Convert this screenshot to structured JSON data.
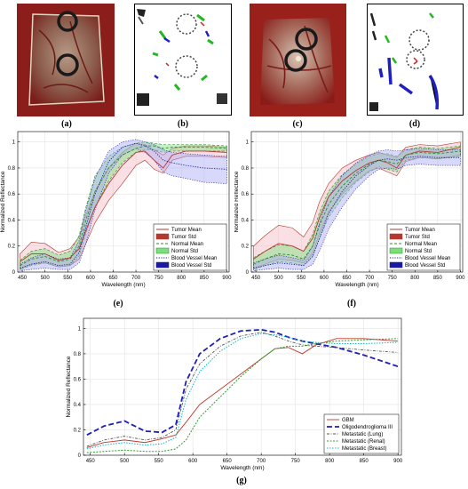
{
  "panels": {
    "a": {
      "label": "(a)"
    },
    "b": {
      "label": "(b)"
    },
    "c": {
      "label": "(c)"
    },
    "d": {
      "label": "(d)"
    },
    "e": {
      "label": "(e)"
    },
    "f": {
      "label": "(f)"
    },
    "g": {
      "label": "(g)"
    }
  },
  "colors": {
    "tumor": "#b03a2e",
    "tumor_fill": "#f5b7c4",
    "normal": "#2e8b2e",
    "normal_fill": "#7be07b",
    "blood": "#1a1aa0",
    "blood_fill": "#a9a9f5",
    "gbm": "#c0392b",
    "oligo": "#1f1fb4",
    "lung": "#555555",
    "renal": "#2ca02c",
    "breast": "#17b6c8"
  },
  "chart_data": [
    {
      "id": "e",
      "type": "line",
      "xlabel": "Wavelength (nm)",
      "ylabel": "Normalized Reflectance",
      "xlim": [
        440,
        905
      ],
      "ylim": [
        0,
        1.08
      ],
      "xticks": [
        450,
        500,
        550,
        600,
        650,
        700,
        750,
        800,
        850,
        900
      ],
      "yticks": [
        0,
        0.2,
        0.4,
        0.6,
        0.8,
        1
      ],
      "legend_position": "bottom-right",
      "legend": [
        "Tumor Mean",
        "Tumor Std",
        "Normal Mean",
        "Normal Std",
        "Blood Vessel Mean",
        "Blood Vessel Std"
      ],
      "x": [
        445,
        470,
        500,
        530,
        555,
        575,
        590,
        610,
        640,
        670,
        700,
        720,
        740,
        760,
        780,
        810,
        850,
        900
      ],
      "series": [
        {
          "name": "Tumor Mean",
          "values": [
            0.08,
            0.14,
            0.14,
            0.09,
            0.11,
            0.18,
            0.32,
            0.5,
            0.68,
            0.82,
            0.92,
            0.93,
            0.86,
            0.8,
            0.9,
            0.93,
            0.93,
            0.92
          ],
          "lower": [
            0.02,
            0.06,
            0.07,
            0.04,
            0.05,
            0.1,
            0.22,
            0.38,
            0.55,
            0.68,
            0.82,
            0.86,
            0.79,
            0.76,
            0.86,
            0.89,
            0.89,
            0.88
          ],
          "upper": [
            0.14,
            0.23,
            0.22,
            0.15,
            0.18,
            0.27,
            0.44,
            0.62,
            0.8,
            0.92,
            0.99,
            0.98,
            0.94,
            0.9,
            0.95,
            0.97,
            0.97,
            0.96
          ]
        },
        {
          "name": "Normal Mean",
          "values": [
            0.05,
            0.1,
            0.12,
            0.08,
            0.1,
            0.2,
            0.4,
            0.62,
            0.8,
            0.9,
            0.95,
            0.97,
            0.97,
            0.95,
            0.96,
            0.96,
            0.96,
            0.95
          ],
          "lower": [
            0.02,
            0.05,
            0.07,
            0.04,
            0.05,
            0.12,
            0.3,
            0.5,
            0.7,
            0.84,
            0.92,
            0.94,
            0.94,
            0.92,
            0.93,
            0.93,
            0.93,
            0.93
          ],
          "upper": [
            0.09,
            0.16,
            0.18,
            0.13,
            0.16,
            0.28,
            0.5,
            0.74,
            0.89,
            0.96,
            0.99,
            1.0,
            0.99,
            0.98,
            0.98,
            0.98,
            0.98,
            0.97
          ]
        },
        {
          "name": "Blood Vessel Mean",
          "values": [
            0.03,
            0.06,
            0.08,
            0.05,
            0.06,
            0.15,
            0.35,
            0.6,
            0.85,
            0.96,
            0.99,
            0.97,
            0.93,
            0.86,
            0.84,
            0.82,
            0.8,
            0.79
          ],
          "lower": [
            0.01,
            0.02,
            0.03,
            0.02,
            0.02,
            0.07,
            0.22,
            0.48,
            0.76,
            0.9,
            0.95,
            0.92,
            0.86,
            0.77,
            0.74,
            0.72,
            0.69,
            0.68
          ],
          "upper": [
            0.06,
            0.11,
            0.14,
            0.1,
            0.11,
            0.24,
            0.48,
            0.72,
            0.93,
            1.0,
            1.02,
            1.0,
            0.98,
            0.94,
            0.92,
            0.91,
            0.9,
            0.89
          ]
        }
      ]
    },
    {
      "id": "f",
      "type": "line",
      "xlabel": "Wavelength (nm)",
      "ylabel": "Normalized Reflectance",
      "xlim": [
        440,
        905
      ],
      "ylim": [
        0,
        1.08
      ],
      "xticks": [
        450,
        500,
        550,
        600,
        650,
        700,
        750,
        800,
        850,
        900
      ],
      "yticks": [
        0,
        0.2,
        0.4,
        0.6,
        0.8,
        1
      ],
      "legend_position": "bottom-right",
      "legend": [
        "Tumor Mean",
        "Tumor Std",
        "Normal Mean",
        "Normal Std",
        "Blood Vessel Mean",
        "Blood Vessel Std"
      ],
      "x": [
        445,
        470,
        500,
        530,
        555,
        575,
        590,
        610,
        640,
        670,
        700,
        720,
        740,
        760,
        780,
        810,
        850,
        900
      ],
      "series": [
        {
          "name": "Tumor Mean",
          "values": [
            0.1,
            0.16,
            0.22,
            0.2,
            0.16,
            0.26,
            0.42,
            0.58,
            0.7,
            0.78,
            0.84,
            0.86,
            0.84,
            0.8,
            0.9,
            0.93,
            0.92,
            0.96
          ],
          "lower": [
            0.03,
            0.06,
            0.1,
            0.09,
            0.07,
            0.14,
            0.3,
            0.46,
            0.6,
            0.7,
            0.78,
            0.8,
            0.77,
            0.74,
            0.85,
            0.88,
            0.87,
            0.9
          ],
          "upper": [
            0.2,
            0.28,
            0.36,
            0.34,
            0.27,
            0.38,
            0.54,
            0.68,
            0.8,
            0.86,
            0.9,
            0.92,
            0.9,
            0.88,
            0.96,
            0.98,
            0.97,
            1.0
          ]
        },
        {
          "name": "Normal Mean",
          "values": [
            0.06,
            0.1,
            0.14,
            0.13,
            0.1,
            0.2,
            0.36,
            0.52,
            0.66,
            0.76,
            0.83,
            0.86,
            0.85,
            0.83,
            0.9,
            0.92,
            0.91,
            0.93
          ],
          "lower": [
            0.02,
            0.05,
            0.08,
            0.07,
            0.05,
            0.12,
            0.26,
            0.42,
            0.57,
            0.69,
            0.77,
            0.81,
            0.79,
            0.77,
            0.86,
            0.88,
            0.87,
            0.89
          ],
          "upper": [
            0.11,
            0.16,
            0.21,
            0.2,
            0.16,
            0.29,
            0.46,
            0.62,
            0.75,
            0.83,
            0.89,
            0.91,
            0.91,
            0.89,
            0.94,
            0.96,
            0.95,
            0.97
          ]
        },
        {
          "name": "Blood Vessel Mean",
          "values": [
            0.03,
            0.05,
            0.07,
            0.06,
            0.05,
            0.12,
            0.26,
            0.45,
            0.62,
            0.74,
            0.82,
            0.86,
            0.87,
            0.86,
            0.88,
            0.89,
            0.88,
            0.88
          ],
          "lower": [
            0.01,
            0.02,
            0.03,
            0.02,
            0.02,
            0.06,
            0.16,
            0.33,
            0.5,
            0.64,
            0.74,
            0.79,
            0.8,
            0.79,
            0.82,
            0.83,
            0.82,
            0.82
          ],
          "upper": [
            0.07,
            0.1,
            0.13,
            0.11,
            0.09,
            0.2,
            0.38,
            0.58,
            0.74,
            0.84,
            0.9,
            0.93,
            0.94,
            0.93,
            0.94,
            0.95,
            0.94,
            0.94
          ]
        }
      ]
    },
    {
      "id": "g",
      "type": "line",
      "xlabel": "Wavelength (nm)",
      "ylabel": "Normalized Reflectance",
      "xlim": [
        440,
        905
      ],
      "ylim": [
        0,
        1.08
      ],
      "xticks": [
        450,
        500,
        550,
        600,
        650,
        700,
        750,
        800,
        850,
        900
      ],
      "yticks": [
        0,
        0.2,
        0.4,
        0.6,
        0.8,
        1
      ],
      "legend_position": "bottom-right",
      "x": [
        445,
        470,
        500,
        530,
        555,
        575,
        590,
        610,
        640,
        670,
        700,
        720,
        740,
        760,
        780,
        810,
        850,
        900
      ],
      "series": [
        {
          "name": "GBM",
          "values": [
            0.06,
            0.1,
            0.12,
            0.1,
            0.13,
            0.16,
            0.26,
            0.4,
            0.52,
            0.64,
            0.76,
            0.84,
            0.85,
            0.8,
            0.87,
            0.92,
            0.92,
            0.9
          ]
        },
        {
          "name": "Oligodendroglioma III",
          "values": [
            0.16,
            0.23,
            0.27,
            0.19,
            0.18,
            0.24,
            0.58,
            0.8,
            0.92,
            0.98,
            0.99,
            0.97,
            0.93,
            0.9,
            0.88,
            0.85,
            0.79,
            0.7
          ]
        },
        {
          "name": "Metastatic (Lung)",
          "values": [
            0.07,
            0.12,
            0.15,
            0.12,
            0.14,
            0.2,
            0.52,
            0.72,
            0.86,
            0.94,
            0.97,
            0.94,
            0.9,
            0.87,
            0.86,
            0.85,
            0.83,
            0.81
          ]
        },
        {
          "name": "Metastatic (Renal)",
          "values": [
            0.02,
            0.03,
            0.04,
            0.03,
            0.03,
            0.05,
            0.12,
            0.3,
            0.46,
            0.62,
            0.76,
            0.84,
            0.86,
            0.86,
            0.88,
            0.9,
            0.91,
            0.92
          ]
        },
        {
          "name": "Metastatic (Breast)",
          "values": [
            0.05,
            0.08,
            0.1,
            0.08,
            0.09,
            0.14,
            0.44,
            0.66,
            0.82,
            0.92,
            0.96,
            0.95,
            0.93,
            0.9,
            0.89,
            0.88,
            0.88,
            0.89
          ]
        }
      ]
    }
  ]
}
